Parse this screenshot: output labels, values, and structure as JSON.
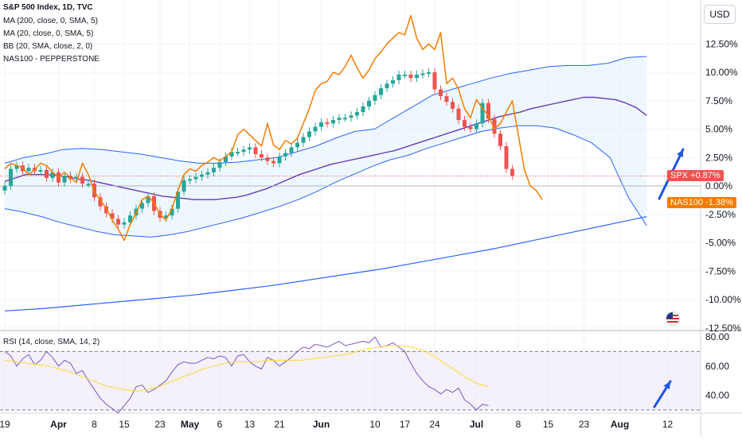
{
  "legend": {
    "title": "S&P 500 Index, 1D, TVC",
    "studies": [
      "MA (200, close, 0, SMA, 5)",
      "MA (20, close, 0, SMA, 5)",
      "BB (20, SMA, close, 2, 0)",
      "NAS100 - PEPPERSTONE"
    ]
  },
  "currency_button": "USD",
  "tags": {
    "spx_symbol": "SPX",
    "spx_value": "+0.87%",
    "nas_symbol": "NAS100",
    "nas_value": "-1.38%"
  },
  "rsi_legend": "RSI (14, close, SMA, 14, 2)",
  "colors": {
    "up": "#26a69a",
    "down": "#ef5350",
    "nas100": "#f57c00",
    "ma20": "#673ab7",
    "ma200": "#2962ff",
    "bb": "#2962ff",
    "bb_fill": "#e3f2fd",
    "rsi": "#7e57c2",
    "rsi_ma": "#fdd835",
    "arrow": "#1e53e5",
    "grid": "#f0f3fa"
  },
  "chart_data": {
    "type": "line",
    "title": "S&P 500 Index, 1D, TVC",
    "main_axis": {
      "unit": "%",
      "ylim": [
        -12.5,
        15
      ],
      "tick_labels": [
        "12.50%",
        "10.00%",
        "7.50%",
        "5.00%",
        "2.50%",
        "0.00%",
        "-2.50%",
        "-5.00%",
        "-7.50%",
        "-10.00%",
        "-12.50%"
      ],
      "tick_values": [
        12.5,
        10,
        7.5,
        5,
        2.5,
        0,
        -2.5,
        -5,
        -7.5,
        -10,
        -12.5
      ]
    },
    "x_axis": {
      "tick_labels": [
        "19",
        "Apr",
        "8",
        "15",
        "23",
        "May",
        "6",
        "13",
        "21",
        "Jun",
        "10",
        "17",
        "24",
        "Jul",
        "8",
        "15",
        "23",
        "Aug",
        "12"
      ],
      "tick_index": [
        0,
        9,
        15,
        20,
        26,
        31,
        36,
        41,
        46,
        53,
        62,
        67,
        72,
        79,
        86,
        91,
        97,
        103,
        111
      ]
    },
    "series": [
      {
        "name": "NAS100 - PEPPERSTONE",
        "values": [
          1.5,
          2.0,
          1.8,
          1.6,
          1.0,
          1.4,
          2.0,
          1.8,
          1.2,
          0.8,
          1.2,
          0.7,
          0.3,
          2.0,
          1.0,
          -0.5,
          -1.2,
          -2.0,
          -3.0,
          -3.8,
          -4.8,
          -3.4,
          -2.4,
          -1.2,
          -0.9,
          -1.5,
          -2.5,
          -3.0,
          -2.0,
          -0.4,
          1.0,
          1.5,
          1.3,
          1.8,
          2.1,
          2.5,
          2.2,
          2.6,
          3.0,
          4.5,
          5.0,
          4.5,
          4.0,
          3.5,
          5.5,
          3.6,
          3.2,
          4.0,
          3.7,
          4.2,
          5.5,
          6.8,
          8.4,
          9.0,
          9.2,
          10.0,
          9.8,
          10.5,
          11.5,
          10.4,
          9.5,
          10.2,
          11.2,
          11.8,
          12.5,
          13.0,
          13.5,
          13.3,
          15.0,
          13.0,
          12.0,
          12.5,
          12.0,
          13.5,
          9.0,
          9.5,
          8.5,
          6.8,
          6.0,
          7.6,
          6.8,
          6.2,
          5.0,
          5.5,
          6.5,
          7.5,
          4.5,
          1.5,
          0.0,
          -0.4,
          -1.2
        ]
      },
      {
        "name": "SPX",
        "values": [
          0.0,
          1.5,
          1.8,
          1.3,
          1.6,
          1.3,
          1.4,
          0.7,
          1.2,
          0.3,
          0.9,
          0.6,
          0.8,
          0.2,
          0.2,
          -1.0,
          -1.8,
          -2.4,
          -2.9,
          -3.4,
          -3.2,
          -2.6,
          -2.0,
          -1.5,
          -0.9,
          -2.2,
          -2.8,
          -2.6,
          -2.0,
          -0.5,
          0.5,
          0.6,
          0.8,
          1.0,
          1.2,
          1.6,
          2.1,
          2.6,
          3.0,
          3.0,
          3.2,
          3.4,
          2.8,
          2.5,
          2.2,
          2.0,
          2.6,
          2.9,
          3.4,
          3.8,
          4.3,
          4.8,
          5.2,
          5.6,
          5.5,
          5.8,
          6.0,
          6.0,
          6.2,
          6.5,
          7.0,
          7.5,
          8.0,
          8.6,
          9.0,
          9.3,
          9.8,
          9.8,
          9.5,
          9.8,
          9.9,
          10.0,
          8.5,
          7.9,
          7.4,
          6.8,
          5.8,
          5.2,
          5.0,
          5.5,
          7.3,
          5.9,
          4.6,
          3.5,
          1.5,
          0.9
        ]
      },
      {
        "name": "MA (20)",
        "values": [
          0.4,
          0.7,
          1.0,
          1.0,
          1.0,
          0.9,
          0.8,
          0.6,
          0.5,
          0.3,
          0.1,
          -0.1,
          -0.3,
          -0.5,
          -0.7,
          -0.9,
          -1.0,
          -1.1,
          -1.2,
          -1.2,
          -1.2,
          -1.1,
          -1.0,
          -0.8,
          -0.5,
          -0.2,
          0.2,
          0.6,
          1.0,
          1.3,
          1.6,
          1.9,
          2.1,
          2.3,
          2.5,
          2.7,
          2.9,
          3.1,
          3.4,
          3.7,
          4.0,
          4.3,
          4.6,
          4.9,
          5.2,
          5.5,
          5.8,
          6.1,
          6.3,
          6.5,
          6.8,
          7.0,
          7.2,
          7.4,
          7.6,
          7.8,
          7.8,
          7.7,
          7.6,
          7.3,
          6.9,
          6.2
        ]
      },
      {
        "name": "MA (200)",
        "values": [
          -11.0,
          -10.8,
          -10.5,
          -10.2,
          -9.9,
          -9.6,
          -9.2,
          -8.8,
          -8.3,
          -7.8,
          -7.3,
          -6.7,
          -6.1,
          -5.5,
          -4.8,
          -4.1,
          -3.4,
          -2.7
        ]
      },
      {
        "name": "BB upper",
        "values": [
          2.0,
          2.5,
          2.8,
          3.2,
          3.3,
          3.2,
          3.0,
          2.8,
          2.5,
          2.2,
          2.0,
          2.0,
          2.1,
          2.3,
          2.5,
          3.0,
          3.5,
          4.2,
          4.8,
          5.0,
          6.0,
          7.0,
          8.0,
          8.5,
          9.0,
          9.5,
          9.9,
          10.2,
          10.5,
          10.6,
          10.6,
          10.8,
          11.3,
          11.4
        ]
      },
      {
        "name": "BB lower",
        "values": [
          -2.0,
          -2.3,
          -2.7,
          -3.2,
          -3.6,
          -4.0,
          -4.3,
          -4.4,
          -4.5,
          -4.3,
          -4.0,
          -3.6,
          -3.2,
          -2.8,
          -2.3,
          -1.8,
          -1.2,
          -0.5,
          0.3,
          1.0,
          1.7,
          2.3,
          2.7,
          3.3,
          3.8,
          4.3,
          4.8,
          5.1,
          5.3,
          5.3,
          5.1,
          4.5,
          3.8,
          2.5,
          -1.0,
          -3.5
        ]
      }
    ],
    "rsi": {
      "name": "RSI (14, close, SMA, 14, 2)",
      "ylim": [
        27,
        82
      ],
      "tick_labels": [
        "80.00",
        "60.00",
        "40.00"
      ],
      "tick_values": [
        80,
        60,
        40
      ],
      "bands": [
        70,
        30
      ],
      "values": [
        70,
        67,
        60,
        65,
        68,
        61,
        64,
        70,
        66,
        60,
        64,
        62,
        55,
        57,
        50,
        44,
        38,
        34,
        31,
        28,
        33,
        38,
        46,
        47,
        42,
        44,
        47,
        50,
        56,
        61,
        63,
        62,
        62,
        64,
        66,
        65,
        67,
        66,
        60,
        67,
        68,
        63,
        60,
        58,
        66,
        64,
        60,
        63,
        66,
        70,
        73,
        72,
        75,
        74,
        73,
        75,
        77,
        74,
        75,
        76,
        77,
        76,
        80,
        73,
        74,
        76,
        73,
        70,
        62,
        55,
        50,
        46,
        44,
        41,
        44,
        42,
        45,
        37,
        34,
        30,
        34,
        33
      ],
      "ma_values": [
        64,
        63,
        62,
        61,
        60,
        58,
        56,
        53,
        50,
        47,
        45,
        44,
        43,
        44,
        46,
        49,
        52,
        55,
        58,
        60,
        62,
        63,
        63,
        63,
        64,
        64,
        64,
        64,
        65,
        66,
        67,
        68,
        70,
        72,
        73,
        74,
        74,
        73,
        71,
        67,
        62,
        57,
        52,
        48,
        46
      ]
    }
  }
}
